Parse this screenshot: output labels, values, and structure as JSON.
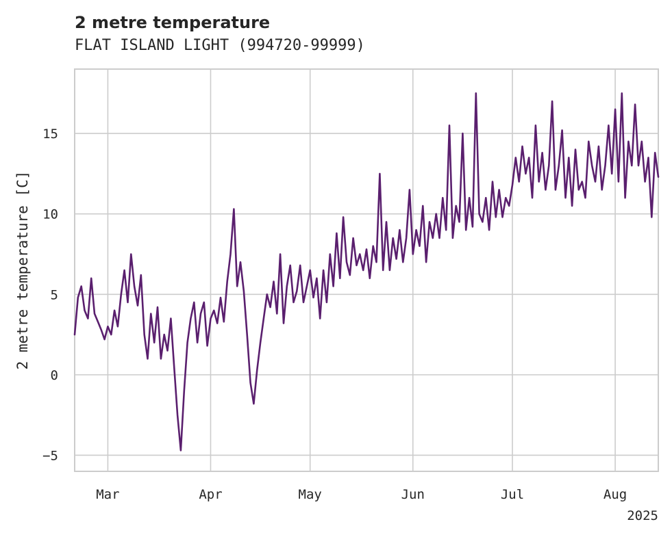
{
  "chart_data": {
    "type": "line",
    "title": "2 metre temperature",
    "subtitle": "FLAT ISLAND LIGHT (994720-99999)",
    "xlabel": "",
    "ylabel": "2 metre temperature [C]",
    "x_axis_year_label": "2025",
    "x_range": [
      "2025-02-19",
      "2025-08-14"
    ],
    "ylim": [
      -6,
      19
    ],
    "yticks": [
      -5,
      0,
      5,
      10,
      15
    ],
    "xticks": [
      {
        "date": "2025-03-01",
        "label": "Mar"
      },
      {
        "date": "2025-04-01",
        "label": "Apr"
      },
      {
        "date": "2025-05-01",
        "label": "May"
      },
      {
        "date": "2025-06-01",
        "label": "Jun"
      },
      {
        "date": "2025-07-01",
        "label": "Jul"
      },
      {
        "date": "2025-08-01",
        "label": "Aug"
      }
    ],
    "grid": true,
    "legend": "none",
    "series": [
      {
        "color": "#5a1f6e",
        "points": [
          [
            "2025-02-19",
            2.5
          ],
          [
            "2025-02-20",
            4.8
          ],
          [
            "2025-02-21",
            5.5
          ],
          [
            "2025-02-22",
            4.0
          ],
          [
            "2025-02-23",
            3.5
          ],
          [
            "2025-02-24",
            6.0
          ],
          [
            "2025-02-25",
            3.8
          ],
          [
            "2025-02-26",
            3.3
          ],
          [
            "2025-02-27",
            2.8
          ],
          [
            "2025-02-28",
            2.2
          ],
          [
            "2025-03-01",
            3.0
          ],
          [
            "2025-03-02",
            2.5
          ],
          [
            "2025-03-03",
            4.0
          ],
          [
            "2025-03-04",
            3.0
          ],
          [
            "2025-03-05",
            5.0
          ],
          [
            "2025-03-06",
            6.5
          ],
          [
            "2025-03-07",
            4.5
          ],
          [
            "2025-03-08",
            7.5
          ],
          [
            "2025-03-09",
            5.5
          ],
          [
            "2025-03-10",
            4.3
          ],
          [
            "2025-03-11",
            6.2
          ],
          [
            "2025-03-12",
            2.5
          ],
          [
            "2025-03-13",
            1.0
          ],
          [
            "2025-03-14",
            3.8
          ],
          [
            "2025-03-15",
            2.0
          ],
          [
            "2025-03-16",
            4.2
          ],
          [
            "2025-03-17",
            1.0
          ],
          [
            "2025-03-18",
            2.5
          ],
          [
            "2025-03-19",
            1.5
          ],
          [
            "2025-03-20",
            3.5
          ],
          [
            "2025-03-21",
            0.5
          ],
          [
            "2025-03-22",
            -2.5
          ],
          [
            "2025-03-23",
            -4.7
          ],
          [
            "2025-03-24",
            -1.0
          ],
          [
            "2025-03-25",
            2.0
          ],
          [
            "2025-03-26",
            3.5
          ],
          [
            "2025-03-27",
            4.5
          ],
          [
            "2025-03-28",
            2.0
          ],
          [
            "2025-03-29",
            3.8
          ],
          [
            "2025-03-30",
            4.5
          ],
          [
            "2025-03-31",
            1.8
          ],
          [
            "2025-04-01",
            3.5
          ],
          [
            "2025-04-02",
            4.0
          ],
          [
            "2025-04-03",
            3.2
          ],
          [
            "2025-04-04",
            4.8
          ],
          [
            "2025-04-05",
            3.3
          ],
          [
            "2025-04-06",
            5.8
          ],
          [
            "2025-04-07",
            7.5
          ],
          [
            "2025-04-08",
            10.3
          ],
          [
            "2025-04-09",
            5.5
          ],
          [
            "2025-04-10",
            7.0
          ],
          [
            "2025-04-11",
            5.2
          ],
          [
            "2025-04-12",
            2.5
          ],
          [
            "2025-04-13",
            -0.5
          ],
          [
            "2025-04-14",
            -1.8
          ],
          [
            "2025-04-15",
            0.3
          ],
          [
            "2025-04-16",
            2.0
          ],
          [
            "2025-04-17",
            3.5
          ],
          [
            "2025-04-18",
            5.0
          ],
          [
            "2025-04-19",
            4.2
          ],
          [
            "2025-04-20",
            5.8
          ],
          [
            "2025-04-21",
            3.8
          ],
          [
            "2025-04-22",
            7.5
          ],
          [
            "2025-04-23",
            3.2
          ],
          [
            "2025-04-24",
            5.5
          ],
          [
            "2025-04-25",
            6.8
          ],
          [
            "2025-04-26",
            4.5
          ],
          [
            "2025-04-27",
            5.2
          ],
          [
            "2025-04-28",
            6.8
          ],
          [
            "2025-04-29",
            4.5
          ],
          [
            "2025-04-30",
            5.5
          ],
          [
            "2025-05-01",
            6.5
          ],
          [
            "2025-05-02",
            4.8
          ],
          [
            "2025-05-03",
            6.0
          ],
          [
            "2025-05-04",
            3.5
          ],
          [
            "2025-05-05",
            6.5
          ],
          [
            "2025-05-06",
            4.5
          ],
          [
            "2025-05-07",
            7.5
          ],
          [
            "2025-05-08",
            5.5
          ],
          [
            "2025-05-09",
            8.8
          ],
          [
            "2025-05-10",
            6.0
          ],
          [
            "2025-05-11",
            9.8
          ],
          [
            "2025-05-12",
            7.0
          ],
          [
            "2025-05-13",
            6.2
          ],
          [
            "2025-05-14",
            8.5
          ],
          [
            "2025-05-15",
            6.8
          ],
          [
            "2025-05-16",
            7.5
          ],
          [
            "2025-05-17",
            6.5
          ],
          [
            "2025-05-18",
            7.8
          ],
          [
            "2025-05-19",
            6.0
          ],
          [
            "2025-05-20",
            8.0
          ],
          [
            "2025-05-21",
            7.0
          ],
          [
            "2025-05-22",
            12.5
          ],
          [
            "2025-05-23",
            6.5
          ],
          [
            "2025-05-24",
            9.5
          ],
          [
            "2025-05-25",
            6.5
          ],
          [
            "2025-05-26",
            8.5
          ],
          [
            "2025-05-27",
            7.2
          ],
          [
            "2025-05-28",
            9.0
          ],
          [
            "2025-05-29",
            7.0
          ],
          [
            "2025-05-30",
            8.5
          ],
          [
            "2025-05-31",
            11.5
          ],
          [
            "2025-06-01",
            7.5
          ],
          [
            "2025-06-02",
            9.0
          ],
          [
            "2025-06-03",
            8.0
          ],
          [
            "2025-06-04",
            10.5
          ],
          [
            "2025-06-05",
            7.0
          ],
          [
            "2025-06-06",
            9.5
          ],
          [
            "2025-06-07",
            8.5
          ],
          [
            "2025-06-08",
            10.0
          ],
          [
            "2025-06-09",
            8.5
          ],
          [
            "2025-06-10",
            11.0
          ],
          [
            "2025-06-11",
            9.0
          ],
          [
            "2025-06-12",
            15.5
          ],
          [
            "2025-06-13",
            8.5
          ],
          [
            "2025-06-14",
            10.5
          ],
          [
            "2025-06-15",
            9.5
          ],
          [
            "2025-06-16",
            15.0
          ],
          [
            "2025-06-17",
            9.0
          ],
          [
            "2025-06-18",
            11.0
          ],
          [
            "2025-06-19",
            9.2
          ],
          [
            "2025-06-20",
            17.5
          ],
          [
            "2025-06-21",
            10.0
          ],
          [
            "2025-06-22",
            9.5
          ],
          [
            "2025-06-23",
            11.0
          ],
          [
            "2025-06-24",
            9.0
          ],
          [
            "2025-06-25",
            12.0
          ],
          [
            "2025-06-26",
            9.8
          ],
          [
            "2025-06-27",
            11.5
          ],
          [
            "2025-06-28",
            9.8
          ],
          [
            "2025-06-29",
            11.0
          ],
          [
            "2025-06-30",
            10.5
          ],
          [
            "2025-07-01",
            11.8
          ],
          [
            "2025-07-02",
            13.5
          ],
          [
            "2025-07-03",
            12.0
          ],
          [
            "2025-07-04",
            14.2
          ],
          [
            "2025-07-05",
            12.5
          ],
          [
            "2025-07-06",
            13.5
          ],
          [
            "2025-07-07",
            11.0
          ],
          [
            "2025-07-08",
            15.5
          ],
          [
            "2025-07-09",
            12.0
          ],
          [
            "2025-07-10",
            13.8
          ],
          [
            "2025-07-11",
            11.5
          ],
          [
            "2025-07-12",
            13.0
          ],
          [
            "2025-07-13",
            17.0
          ],
          [
            "2025-07-14",
            11.5
          ],
          [
            "2025-07-15",
            13.0
          ],
          [
            "2025-07-16",
            15.2
          ],
          [
            "2025-07-17",
            11.0
          ],
          [
            "2025-07-18",
            13.5
          ],
          [
            "2025-07-19",
            10.5
          ],
          [
            "2025-07-20",
            14.0
          ],
          [
            "2025-07-21",
            11.5
          ],
          [
            "2025-07-22",
            12.0
          ],
          [
            "2025-07-23",
            11.0
          ],
          [
            "2025-07-24",
            14.5
          ],
          [
            "2025-07-25",
            13.0
          ],
          [
            "2025-07-26",
            12.0
          ],
          [
            "2025-07-27",
            14.2
          ],
          [
            "2025-07-28",
            11.5
          ],
          [
            "2025-07-29",
            13.0
          ],
          [
            "2025-07-30",
            15.5
          ],
          [
            "2025-07-31",
            12.5
          ],
          [
            "2025-08-01",
            16.5
          ],
          [
            "2025-08-02",
            12.0
          ],
          [
            "2025-08-03",
            17.5
          ],
          [
            "2025-08-04",
            11.0
          ],
          [
            "2025-08-05",
            14.5
          ],
          [
            "2025-08-06",
            13.0
          ],
          [
            "2025-08-07",
            16.8
          ],
          [
            "2025-08-08",
            13.0
          ],
          [
            "2025-08-09",
            14.5
          ],
          [
            "2025-08-10",
            12.0
          ],
          [
            "2025-08-11",
            13.5
          ],
          [
            "2025-08-12",
            9.8
          ],
          [
            "2025-08-13",
            13.8
          ],
          [
            "2025-08-14",
            12.3
          ]
        ]
      }
    ]
  }
}
